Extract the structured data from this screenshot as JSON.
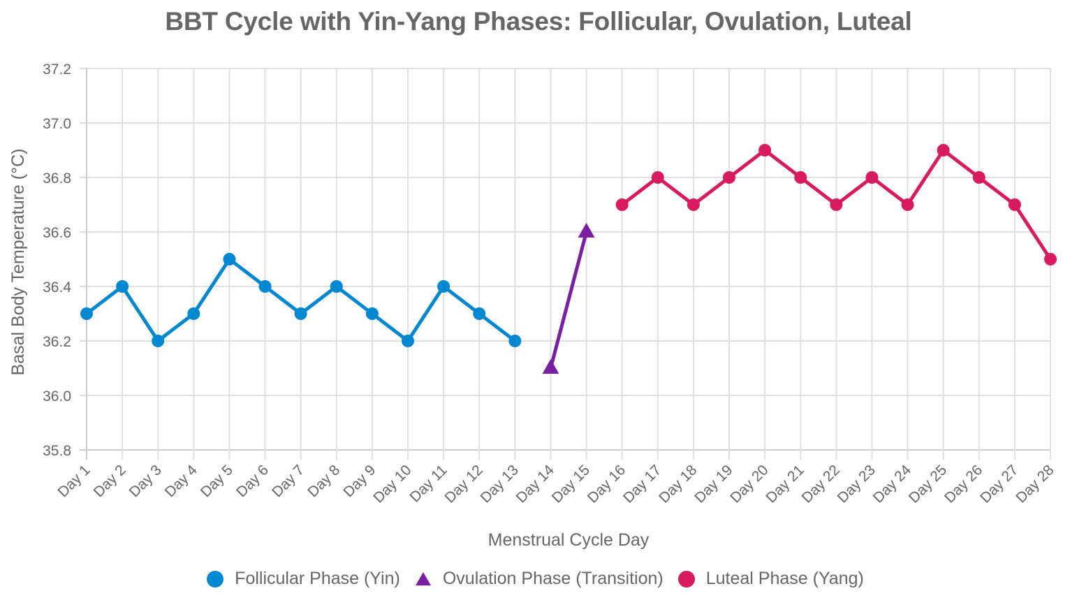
{
  "title": "BBT Cycle with Yin-Yang Phases: Follicular, Ovulation, Luteal",
  "legend": [
    {
      "label": "Follicular Phase (Yin)",
      "marker": "circle",
      "color": "#0288D1"
    },
    {
      "label": "Ovulation Phase (Transition)",
      "marker": "triangle",
      "color": "#7B1FA2"
    },
    {
      "label": "Luteal Phase (Yang)",
      "marker": "circle",
      "color": "#D81B60"
    }
  ],
  "chart_data": {
    "type": "line",
    "title": "BBT Cycle with Yin-Yang Phases: Follicular, Ovulation, Luteal",
    "xlabel": "Menstrual Cycle Day",
    "ylabel": "Basal Body Temperature (°C)",
    "ylim": [
      35.8,
      37.2
    ],
    "yticks": [
      "35.8",
      "36.0",
      "36.2",
      "36.4",
      "36.6",
      "36.8",
      "37.0",
      "37.2"
    ],
    "grid": true,
    "legend_position": "bottom",
    "categories": [
      "Day 1",
      "Day 2",
      "Day 3",
      "Day 4",
      "Day 5",
      "Day 6",
      "Day 7",
      "Day 8",
      "Day 9",
      "Day 10",
      "Day 11",
      "Day 12",
      "Day 13",
      "Day 14",
      "Day 15",
      "Day 16",
      "Day 17",
      "Day 18",
      "Day 19",
      "Day 20",
      "Day 21",
      "Day 22",
      "Day 23",
      "Day 24",
      "Day 25",
      "Day 26",
      "Day 27",
      "Day 28"
    ],
    "series": [
      {
        "name": "Follicular Phase (Yin)",
        "color": "#0288D1",
        "marker": "circle",
        "x": [
          "Day 1",
          "Day 2",
          "Day 3",
          "Day 4",
          "Day 5",
          "Day 6",
          "Day 7",
          "Day 8",
          "Day 9",
          "Day 10",
          "Day 11",
          "Day 12",
          "Day 13"
        ],
        "values": [
          36.3,
          36.4,
          36.2,
          36.3,
          36.5,
          36.4,
          36.3,
          36.4,
          36.3,
          36.2,
          36.4,
          36.3,
          36.2
        ]
      },
      {
        "name": "Ovulation Phase (Transition)",
        "color": "#7B1FA2",
        "marker": "triangle",
        "x": [
          "Day 14",
          "Day 15"
        ],
        "values": [
          36.1,
          36.6
        ]
      },
      {
        "name": "Luteal Phase (Yang)",
        "color": "#D81B60",
        "marker": "circle",
        "x": [
          "Day 16",
          "Day 17",
          "Day 18",
          "Day 19",
          "Day 20",
          "Day 21",
          "Day 22",
          "Day 23",
          "Day 24",
          "Day 25",
          "Day 26",
          "Day 27",
          "Day 28"
        ],
        "values": [
          36.7,
          36.8,
          36.7,
          36.8,
          36.9,
          36.8,
          36.7,
          36.8,
          36.7,
          36.9,
          36.8,
          36.7,
          36.5
        ]
      }
    ]
  }
}
